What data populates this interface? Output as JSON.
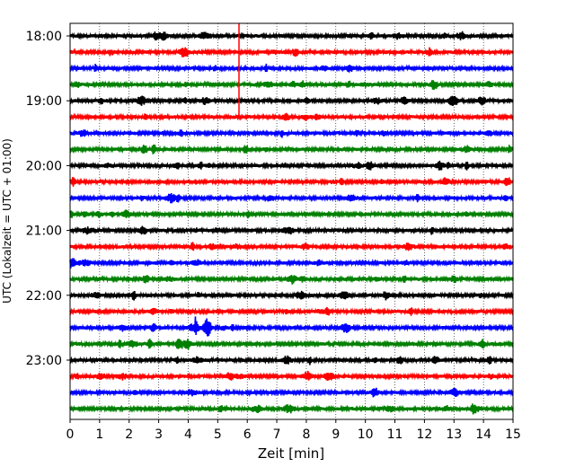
{
  "chart_data": {
    "type": "line",
    "title": "",
    "xlabel": "Zeit  [min]",
    "ylabel": "UTC (Lokalzeit = UTC + 01:00)",
    "xlim": [
      0,
      15
    ],
    "x_ticks": [
      "0",
      "1",
      "2",
      "3",
      "4",
      "5",
      "6",
      "7",
      "8",
      "9",
      "10",
      "11",
      "12",
      "13",
      "14",
      "15"
    ],
    "y_ticks": [
      "18:00",
      "19:00",
      "20:00",
      "21:00",
      "22:00",
      "23:00"
    ],
    "grid": "vertical dotted lines at each minute",
    "trace_colors": [
      "#000000",
      "#ff0000",
      "#0000ff",
      "#008000"
    ],
    "traces": [
      {
        "start": "18:00"
      },
      {
        "start": "18:15"
      },
      {
        "start": "18:30"
      },
      {
        "start": "18:45"
      },
      {
        "start": "19:00"
      },
      {
        "start": "19:15"
      },
      {
        "start": "19:30"
      },
      {
        "start": "19:45"
      },
      {
        "start": "20:00"
      },
      {
        "start": "20:15"
      },
      {
        "start": "20:30"
      },
      {
        "start": "20:45"
      },
      {
        "start": "21:00"
      },
      {
        "start": "21:15"
      },
      {
        "start": "21:30"
      },
      {
        "start": "21:45"
      },
      {
        "start": "22:00"
      },
      {
        "start": "22:15"
      },
      {
        "start": "22:30"
      },
      {
        "start": "22:45"
      },
      {
        "start": "23:00"
      },
      {
        "start": "23:15"
      },
      {
        "start": "23:30"
      },
      {
        "start": "23:45"
      }
    ],
    "events": [
      {
        "start": "18:15",
        "minute": 5.72,
        "description": "large red spike spanning several traces"
      },
      {
        "start": "22:30",
        "minute": 4.65,
        "description": "blue burst"
      },
      {
        "start": "22:30",
        "minute": 4.25,
        "description": "blue spike"
      }
    ]
  }
}
